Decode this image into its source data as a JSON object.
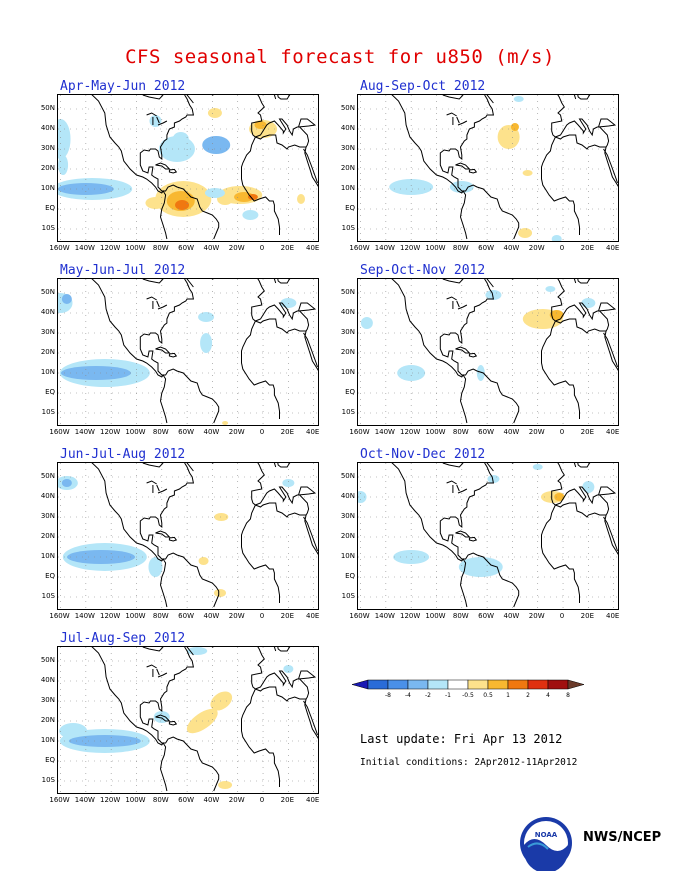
{
  "title": "CFS seasonal forecast for u850 (m/s)",
  "panels": [
    {
      "title": "Apr-May-Jun 2012",
      "season": "AMJ"
    },
    {
      "title": "Aug-Sep-Oct 2012",
      "season": "ASO"
    },
    {
      "title": "May-Jun-Jul 2012",
      "season": "MJJ"
    },
    {
      "title": "Sep-Oct-Nov 2012",
      "season": "SON"
    },
    {
      "title": "Jun-Jul-Aug 2012",
      "season": "JJA"
    },
    {
      "title": "Oct-Nov-Dec 2012",
      "season": "OND"
    },
    {
      "title": "Jul-Aug-Sep 2012",
      "season": "JAS"
    }
  ],
  "lat_labels": [
    "50N",
    "40N",
    "30N",
    "20N",
    "10N",
    "EQ",
    "10S"
  ],
  "lon_labels": [
    "160W",
    "140W",
    "120W",
    "100W",
    "80W",
    "60W",
    "40W",
    "20W",
    "0",
    "20E",
    "40E"
  ],
  "colorbar": {
    "labels": [
      "-8",
      "-4",
      "-2",
      "-1",
      "-0.5",
      "0.5",
      "1",
      "2",
      "4",
      "8"
    ],
    "colors": [
      "#1a1ab4",
      "#2a6cd8",
      "#4a90e8",
      "#7ab8f0",
      "#b4e6f8",
      "#ffffff",
      "#fde28c",
      "#f8b830",
      "#f07810",
      "#e03010",
      "#a01010",
      "#6a3a2a"
    ]
  },
  "last_update": "Last update: Fri Apr 13 2012",
  "initial_conditions": "Initial conditions: 2Apr2012-11Apr2012",
  "agency": "NWS/NCEP",
  "logo_text": "NOAA"
}
